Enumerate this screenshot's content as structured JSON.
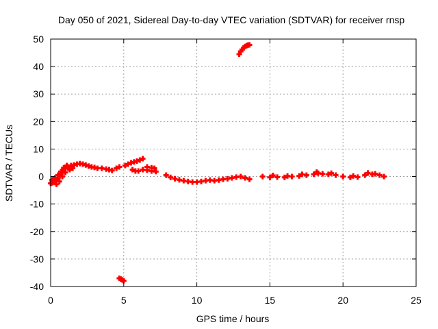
{
  "chart_data": {
    "type": "scatter",
    "title": "Day 050 of 2021, Sidereal Day-to-day VTEC variation (SDTVAR) for receiver rnsp",
    "xlabel": "GPS time / hours",
    "ylabel": "SDTVAR / TECUs",
    "xlim": [
      0,
      25
    ],
    "ylim": [
      -40,
      50
    ],
    "xticks": [
      0,
      5,
      10,
      15,
      20,
      25
    ],
    "yticks": [
      -40,
      -30,
      -20,
      -10,
      0,
      10,
      20,
      30,
      40,
      50
    ],
    "grid": true,
    "marker_color": "#ff0000",
    "series": [
      {
        "name": "SDTVAR",
        "points": [
          [
            0.0,
            -2.5
          ],
          [
            0.1,
            -2.3
          ],
          [
            0.2,
            -2.0
          ],
          [
            0.3,
            -1.5
          ],
          [
            0.4,
            -1.0
          ],
          [
            0.5,
            -0.5
          ],
          [
            0.6,
            0.3
          ],
          [
            0.7,
            1.0
          ],
          [
            0.8,
            1.8
          ],
          [
            0.9,
            2.5
          ],
          [
            1.0,
            3.0
          ],
          [
            1.2,
            3.5
          ],
          [
            1.4,
            4.0
          ],
          [
            1.6,
            4.2
          ],
          [
            1.8,
            4.5
          ],
          [
            2.0,
            4.7
          ],
          [
            2.2,
            4.5
          ],
          [
            2.4,
            4.2
          ],
          [
            2.6,
            3.8
          ],
          [
            2.8,
            3.5
          ],
          [
            3.0,
            3.3
          ],
          [
            3.2,
            3.0
          ],
          [
            3.5,
            3.0
          ],
          [
            3.8,
            2.7
          ],
          [
            4.0,
            2.5
          ],
          [
            4.2,
            2.2
          ],
          [
            4.5,
            3.0
          ],
          [
            4.7,
            3.5
          ],
          [
            0.1,
            -1.2
          ],
          [
            0.3,
            -0.5
          ],
          [
            0.5,
            0.5
          ],
          [
            0.7,
            1.8
          ],
          [
            0.9,
            3.2
          ],
          [
            1.1,
            4.0
          ],
          [
            1.3,
            2.5
          ],
          [
            1.5,
            3.0
          ],
          [
            0.4,
            -2.8
          ],
          [
            0.6,
            -1.8
          ],
          [
            0.8,
            0.0
          ],
          [
            1.0,
            1.5
          ],
          [
            5.1,
            4.0
          ],
          [
            5.3,
            4.5
          ],
          [
            5.5,
            5.0
          ],
          [
            5.7,
            5.3
          ],
          [
            5.9,
            5.6
          ],
          [
            6.1,
            6.0
          ],
          [
            6.3,
            6.5
          ],
          [
            5.6,
            2.5
          ],
          [
            5.8,
            2.0
          ],
          [
            6.0,
            2.0
          ],
          [
            6.3,
            2.5
          ],
          [
            6.6,
            2.3
          ],
          [
            6.9,
            2.0
          ],
          [
            7.2,
            1.8
          ],
          [
            6.6,
            3.5
          ],
          [
            6.9,
            3.2
          ],
          [
            7.1,
            3.0
          ],
          [
            7.9,
            0.5
          ],
          [
            8.2,
            -0.3
          ],
          [
            8.5,
            -0.8
          ],
          [
            8.8,
            -1.2
          ],
          [
            9.1,
            -1.5
          ],
          [
            9.4,
            -1.8
          ],
          [
            9.7,
            -2.0
          ],
          [
            10.0,
            -2.0
          ],
          [
            10.3,
            -1.8
          ],
          [
            10.6,
            -1.5
          ],
          [
            10.9,
            -1.3
          ],
          [
            11.2,
            -1.5
          ],
          [
            11.5,
            -1.3
          ],
          [
            11.8,
            -1.0
          ],
          [
            12.1,
            -0.8
          ],
          [
            12.4,
            -0.5
          ],
          [
            12.7,
            -0.2
          ],
          [
            13.0,
            0.0
          ],
          [
            13.3,
            -0.5
          ],
          [
            13.6,
            -1.0
          ],
          [
            12.9,
            44.5
          ],
          [
            13.0,
            45.5
          ],
          [
            13.1,
            46.2
          ],
          [
            13.2,
            46.8
          ],
          [
            13.3,
            47.3
          ],
          [
            13.4,
            47.6
          ],
          [
            13.5,
            47.8
          ],
          [
            13.6,
            47.9
          ],
          [
            4.7,
            -37.0
          ],
          [
            4.8,
            -37.3
          ],
          [
            4.9,
            -37.6
          ],
          [
            5.0,
            -37.9
          ],
          [
            14.5,
            0.0
          ],
          [
            15.0,
            -0.3
          ],
          [
            15.5,
            -0.2
          ],
          [
            16.0,
            -0.3
          ],
          [
            16.5,
            0.0
          ],
          [
            17.0,
            0.2
          ],
          [
            17.5,
            0.5
          ],
          [
            18.0,
            0.8
          ],
          [
            18.3,
            1.2
          ],
          [
            18.6,
            1.0
          ],
          [
            19.0,
            0.8
          ],
          [
            19.5,
            0.5
          ],
          [
            20.0,
            0.0
          ],
          [
            20.5,
            -0.3
          ],
          [
            21.0,
            -0.2
          ],
          [
            21.5,
            0.5
          ],
          [
            22.0,
            0.8
          ],
          [
            22.5,
            0.5
          ],
          [
            22.8,
            0.0
          ],
          [
            15.2,
            0.4
          ],
          [
            16.2,
            0.2
          ],
          [
            17.2,
            0.8
          ],
          [
            18.2,
            1.6
          ],
          [
            19.2,
            1.2
          ],
          [
            20.7,
            0.2
          ],
          [
            21.7,
            1.3
          ],
          [
            22.2,
            1.0
          ]
        ]
      }
    ]
  }
}
